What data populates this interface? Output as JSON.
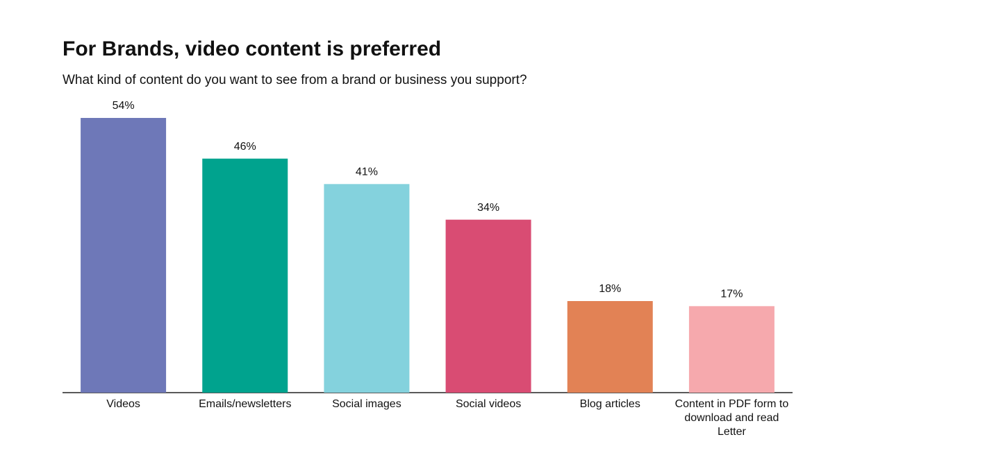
{
  "chart_data": {
    "type": "bar",
    "title": "For Brands, video content is preferred",
    "subtitle": "What kind of content do you want to see from a brand or business you support?",
    "categories": [
      "Videos",
      "Emails/newsletters",
      "Social images",
      "Social videos",
      "Blog articles",
      "Content in PDF form to download and read Letter"
    ],
    "values": [
      54,
      46,
      41,
      34,
      18,
      17
    ],
    "value_labels": [
      "54%",
      "46%",
      "41%",
      "34%",
      "18%",
      "17%"
    ],
    "colors": [
      "#6e78b8",
      "#00a38e",
      "#84d2dd",
      "#d94c73",
      "#e28255",
      "#f6a9ad"
    ]
  }
}
